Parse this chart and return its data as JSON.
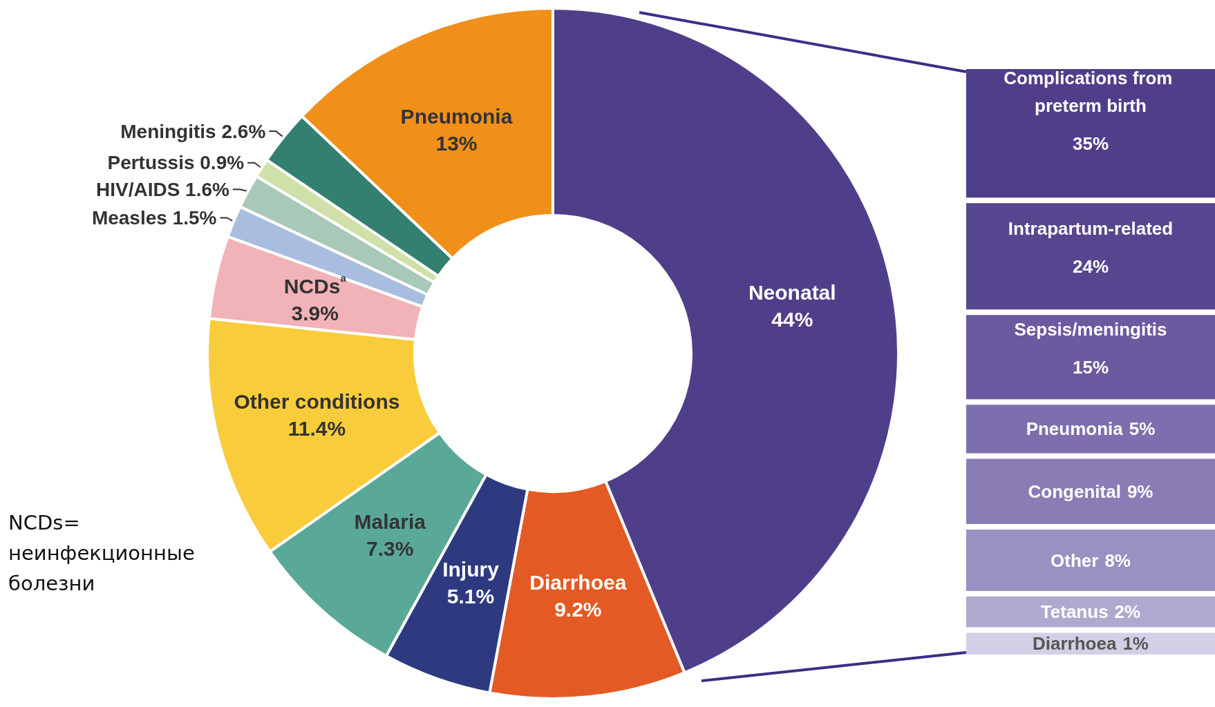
{
  "chart_data": [
    {
      "type": "donut",
      "categories": [
        "Neonatal",
        "Diarrhoea",
        "Injury",
        "Malaria",
        "Other conditions",
        "NCDs$^{a}$",
        "Measles",
        "HIV/AIDS",
        "Pertussis",
        "Meningitis",
        "Pneumonia"
      ],
      "values": [
        44,
        9.2,
        5.1,
        7.3,
        11.4,
        3.9,
        1.5,
        1.6,
        0.9,
        2.6,
        13
      ],
      "value_labels": [
        "44%",
        "9.2%",
        "5.1%",
        "7.3%",
        "11.4%",
        "3.9%",
        "1.5%",
        "1.6%",
        "0.9%",
        "2.6%",
        "13%"
      ],
      "colors": [
        "#4f3f8a",
        "#e35a24",
        "#2e3a80",
        "#5aa898",
        "#f9cc3c",
        "#f2b3b8",
        "#a8bde0",
        "#a8c8b8",
        "#cfe0a8",
        "#338070",
        "#f0901a"
      ],
      "legend": false,
      "annotations": [
        "NCDs= неинфекционные болезни"
      ]
    },
    {
      "type": "other",
      "categories": [
        "Complications from preterm birth",
        "Intrapartum-related",
        "Sepsis/meningitis",
        "Pneumonia",
        "Congenital",
        "Other",
        "Tetanus",
        "Diarrhoea"
      ],
      "values": [
        35,
        24,
        15,
        5,
        9,
        8,
        2,
        1
      ],
      "value_labels": [
        "35%",
        "24%",
        "15%",
        "5%",
        "9%",
        "8%",
        "2%",
        "1%"
      ],
      "colors": [
        "#4f3f8a",
        "#56468f",
        "#6a5aa0",
        "#7d6fae",
        "#8a7db6",
        "#9b90c2",
        "#b1a8d0",
        "#d4cfe6"
      ]
    }
  ]
}
